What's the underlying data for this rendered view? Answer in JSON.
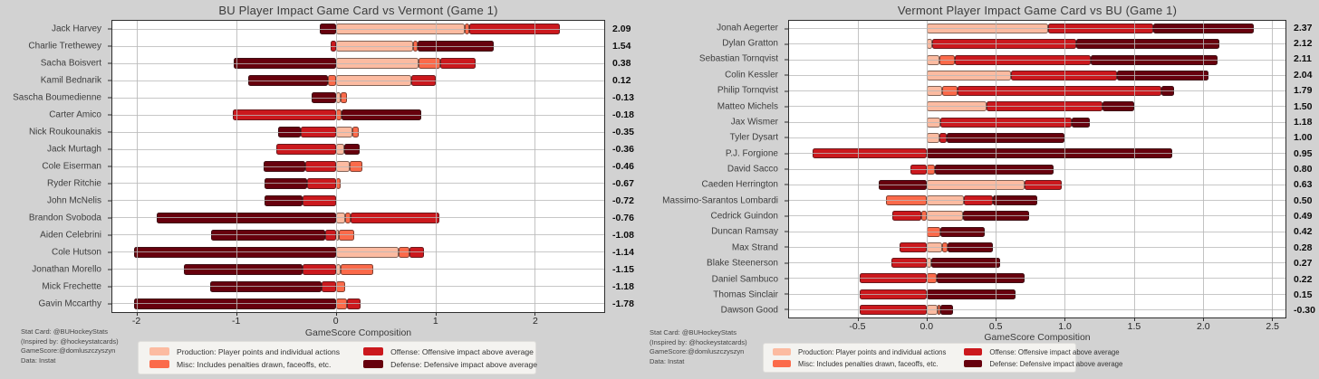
{
  "page": {
    "background": "#d2d2d2"
  },
  "colors": {
    "production": "#FCBBA1",
    "misc": "#FB6A4A",
    "offense": "#CB181D",
    "defense": "#67000D"
  },
  "legend": {
    "items": [
      {
        "key": "production",
        "label": "Production: Player points and individual actions",
        "color": "#FCBBA1"
      },
      {
        "key": "misc",
        "label": "Misc: Includes penalties drawn, faceoffs, etc.",
        "color": "#FB6A4A"
      },
      {
        "key": "offense",
        "label": "Offense: Offensive impact above average",
        "color": "#CB181D"
      },
      {
        "key": "defense",
        "label": "Defense: Defensive impact above average",
        "color": "#67000D"
      }
    ]
  },
  "footer_lines": [
    "Stat Card: @BUHockeyStats",
    "(Inspired by: @hockeystatcards)",
    "GameScore:@domluszczyszyn",
    "Data: Instat"
  ],
  "chart_data": [
    {
      "type": "bar",
      "orientation": "horizontal-stacked",
      "title": "BU Player Impact Game Card vs Vermont (Game 1)",
      "xlabel": "GameScore Composition",
      "xlim": [
        -2.25,
        2.7
      ],
      "grid": true,
      "series_keys": [
        "production",
        "misc",
        "offense",
        "defense"
      ],
      "xticks": [
        {
          "v": -2,
          "label": "-2"
        },
        {
          "v": -1,
          "label": "-1"
        },
        {
          "v": 0,
          "label": "0"
        },
        {
          "v": 1,
          "label": "1"
        },
        {
          "v": 2,
          "label": "2"
        }
      ],
      "players": [
        {
          "name": "Jack Harvey",
          "production": 1.3,
          "misc": 0.04,
          "offense": 0.91,
          "defense": -0.16,
          "total": "2.09"
        },
        {
          "name": "Charlie Trethewey",
          "production": 0.78,
          "misc": 0.04,
          "offense": -0.05,
          "defense": 0.77,
          "total": "1.54"
        },
        {
          "name": "Sacha Boisvert",
          "production": 0.83,
          "misc": 0.22,
          "offense": 0.36,
          "defense": -1.03,
          "total": "0.38"
        },
        {
          "name": "Kamil Bednarik",
          "production": 0.76,
          "misc": -0.08,
          "offense": 0.24,
          "defense": -0.8,
          "total": "0.12"
        },
        {
          "name": "Sascha Boumedienne",
          "production": 0.05,
          "misc": 0.06,
          "offense": 0.0,
          "defense": -0.24,
          "total": "-0.13"
        },
        {
          "name": "Carter Amico",
          "production": 0.0,
          "misc": 0.06,
          "offense": -1.04,
          "defense": 0.8,
          "total": "-0.18"
        },
        {
          "name": "Nick Roukounakis",
          "production": 0.17,
          "misc": 0.06,
          "offense": -0.35,
          "defense": -0.23,
          "total": "-0.35"
        },
        {
          "name": "Jack Murtagh",
          "production": 0.08,
          "misc": 0.0,
          "offense": -0.6,
          "defense": 0.16,
          "total": "-0.36"
        },
        {
          "name": "Cole Eiserman",
          "production": 0.14,
          "misc": 0.13,
          "offense": -0.31,
          "defense": -0.42,
          "total": "-0.46"
        },
        {
          "name": "Ryder Ritchie",
          "production": 0.0,
          "misc": 0.05,
          "offense": -0.29,
          "defense": -0.43,
          "total": "-0.67"
        },
        {
          "name": "John McNelis",
          "production": 0.0,
          "misc": 0.0,
          "offense": -0.34,
          "defense": -0.38,
          "total": "-0.72"
        },
        {
          "name": "Brandon Svoboda",
          "production": 0.09,
          "misc": 0.06,
          "offense": 0.89,
          "defense": -1.8,
          "total": "-0.76"
        },
        {
          "name": "Aiden Celebrini",
          "production": 0.03,
          "misc": 0.15,
          "offense": -0.11,
          "defense": -1.15,
          "total": "-1.08"
        },
        {
          "name": "Cole Hutson",
          "production": 0.63,
          "misc": 0.11,
          "offense": 0.15,
          "defense": -2.03,
          "total": "-1.14"
        },
        {
          "name": "Jonathan Morello",
          "production": 0.05,
          "misc": 0.33,
          "offense": -0.34,
          "defense": -1.19,
          "total": "-1.15"
        },
        {
          "name": "Mick Frechette",
          "production": 0.0,
          "misc": 0.09,
          "offense": -0.14,
          "defense": -1.13,
          "total": "-1.18"
        },
        {
          "name": "Gavin Mccarthy",
          "production": 0.0,
          "misc": 0.11,
          "offense": 0.14,
          "defense": -2.03,
          "total": "-1.78"
        }
      ]
    },
    {
      "type": "bar",
      "orientation": "horizontal-stacked",
      "title": "Vermont Player Impact Game Card vs BU (Game 1)",
      "xlabel": "GameScore Composition",
      "xlim": [
        -1.0,
        2.6
      ],
      "grid": true,
      "series_keys": [
        "production",
        "misc",
        "offense",
        "defense"
      ],
      "xticks": [
        {
          "v": -0.5,
          "label": "-0.5"
        },
        {
          "v": 0.0,
          "label": "0.0"
        },
        {
          "v": 0.5,
          "label": "0.5"
        },
        {
          "v": 1.0,
          "label": "1.0"
        },
        {
          "v": 1.5,
          "label": "1.5"
        },
        {
          "v": 2.0,
          "label": "2.0"
        },
        {
          "v": 2.5,
          "label": "2.5"
        }
      ],
      "players": [
        {
          "name": "Jonah Aegerter",
          "production": 0.88,
          "misc": 0.0,
          "offense": 0.76,
          "defense": 0.73,
          "total": "2.37"
        },
        {
          "name": "Dylan Gratton",
          "production": 0.04,
          "misc": 0.0,
          "offense": 1.04,
          "defense": 1.04,
          "total": "2.12"
        },
        {
          "name": "Sebastian Tornqvist",
          "production": 0.09,
          "misc": 0.11,
          "offense": 0.99,
          "defense": 0.92,
          "total": "2.11"
        },
        {
          "name": "Colin Kessler",
          "production": 0.61,
          "misc": 0.0,
          "offense": 0.77,
          "defense": 0.66,
          "total": "2.04"
        },
        {
          "name": "Philip Tornqvist",
          "production": 0.11,
          "misc": 0.11,
          "offense": 1.48,
          "defense": 0.09,
          "total": "1.79"
        },
        {
          "name": "Matteo Michels",
          "production": 0.43,
          "misc": 0.0,
          "offense": 0.84,
          "defense": 0.23,
          "total": "1.50"
        },
        {
          "name": "Jax Wismer",
          "production": 0.1,
          "misc": 0.0,
          "offense": 0.95,
          "defense": 0.13,
          "total": "1.18"
        },
        {
          "name": "Tyler Dysart",
          "production": 0.09,
          "misc": 0.0,
          "offense": 0.05,
          "defense": 0.86,
          "total": "1.00"
        },
        {
          "name": "P.J. Forgione",
          "production": 0.0,
          "misc": 0.0,
          "offense": -0.83,
          "defense": 1.78,
          "total": "0.95"
        },
        {
          "name": "David Sacco",
          "production": 0.0,
          "misc": 0.06,
          "offense": -0.12,
          "defense": 0.86,
          "total": "0.80"
        },
        {
          "name": "Caeden Herrington",
          "production": 0.71,
          "misc": 0.0,
          "offense": 0.27,
          "defense": -0.35,
          "total": "0.63"
        },
        {
          "name": "Massimo-Sarantos Lombardi",
          "production": 0.27,
          "misc": -0.3,
          "offense": 0.21,
          "defense": 0.32,
          "total": "0.50"
        },
        {
          "name": "Cedrick Guindon",
          "production": 0.26,
          "misc": -0.04,
          "offense": -0.21,
          "defense": 0.48,
          "total": "0.49"
        },
        {
          "name": "Duncan Ramsay",
          "production": 0.0,
          "misc": 0.1,
          "offense": 0.0,
          "defense": 0.32,
          "total": "0.42"
        },
        {
          "name": "Max Strand",
          "production": 0.11,
          "misc": 0.04,
          "offense": -0.2,
          "defense": 0.33,
          "total": "0.28"
        },
        {
          "name": "Blake Steenerson",
          "production": 0.03,
          "misc": 0.0,
          "offense": -0.26,
          "defense": 0.5,
          "total": "0.27"
        },
        {
          "name": "Daniel Sambuco",
          "production": 0.0,
          "misc": 0.07,
          "offense": -0.49,
          "defense": 0.64,
          "total": "0.22"
        },
        {
          "name": "Thomas Sinclair",
          "production": 0.0,
          "misc": 0.0,
          "offense": -0.49,
          "defense": 0.64,
          "total": "0.15"
        },
        {
          "name": "Dawson Good",
          "production": 0.08,
          "misc": 0.02,
          "offense": -0.49,
          "defense": 0.09,
          "total": "-0.30"
        }
      ]
    }
  ]
}
